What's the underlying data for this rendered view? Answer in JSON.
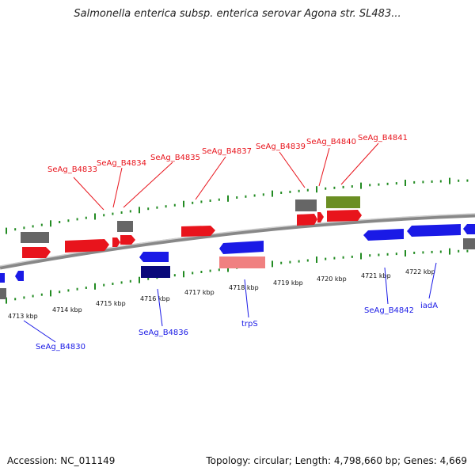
{
  "title": "Salmonella enterica subsp. enterica serovar Agona str. SL483...",
  "footer": {
    "accession": "Accession: NC_011149",
    "topology": "Topology: circular; Length: 4,798,660 bp; Genes: 4,669"
  },
  "colors": {
    "forward_gene": "#e8141c",
    "reverse_gene": "#1a1ae6",
    "reverse_dark": "#0a0a7a",
    "gray_feature": "#666666",
    "olive_feature": "#6b8e23",
    "pink_feature": "#f08080",
    "tick_green": "#228b22",
    "backbone": "#888888"
  },
  "axis_labels": [
    "4713 kbp",
    "4714 kbp",
    "4715 kbp",
    "4716 kbp",
    "4717 kbp",
    "4718 kbp",
    "4719 kbp",
    "4720 kbp",
    "4721 kbp",
    "4722 kbp"
  ],
  "top_gene_labels": [
    "SeAg_B4833",
    "SeAg_B4834",
    "SeAg_B4835",
    "SeAg_B4837",
    "SeAg_B4839",
    "SeAg_B4840",
    "SeAg_B4841"
  ],
  "bottom_gene_labels": [
    "SeAg_B4830",
    "SeAg_B4836",
    "trpS",
    "SeAg_B4842",
    "iadA"
  ]
}
